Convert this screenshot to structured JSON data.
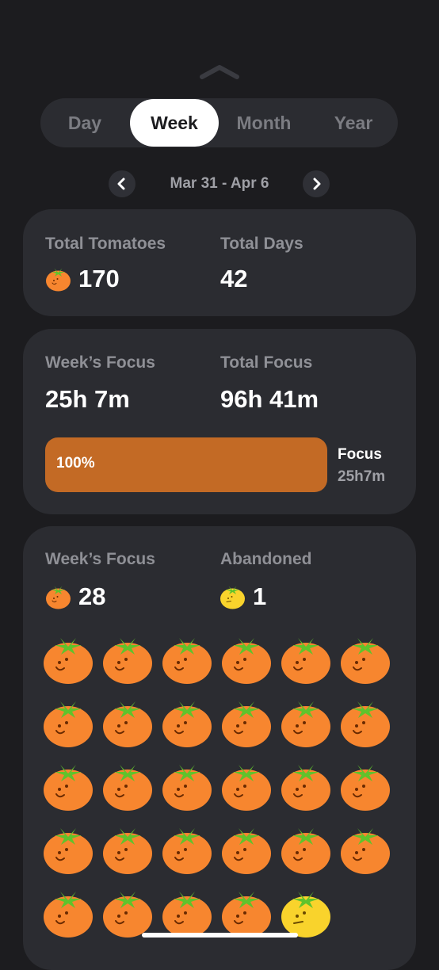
{
  "period_tabs": [
    "Day",
    "Week",
    "Month",
    "Year"
  ],
  "selected_tab": "Week",
  "date_range": "Mar 31 - Apr 6",
  "totals": {
    "tomatoes_label": "Total Tomatoes",
    "tomatoes_value": "170",
    "days_label": "Total Days",
    "days_value": "42"
  },
  "focus": {
    "week_label": "Week’s Focus",
    "week_value": "25h 7m",
    "total_label": "Total Focus",
    "total_value": "96h 41m",
    "bar_percent_label": "100%",
    "bar_fraction": 1.0,
    "legend_title": "Focus",
    "legend_value": "25h7m"
  },
  "tomato_stats": {
    "week_label": "Week’s Focus",
    "week_count": "28",
    "abandoned_label": "Abandoned",
    "abandoned_count": "1",
    "completed_icons": 28,
    "abandoned_icons": 1
  },
  "colors": {
    "background": "#1c1c1f",
    "card": "#2b2c31",
    "accent": "#c36a25",
    "tomato": "#f7862f",
    "leaf": "#5fc32c",
    "abandoned": "#f9d32c"
  }
}
